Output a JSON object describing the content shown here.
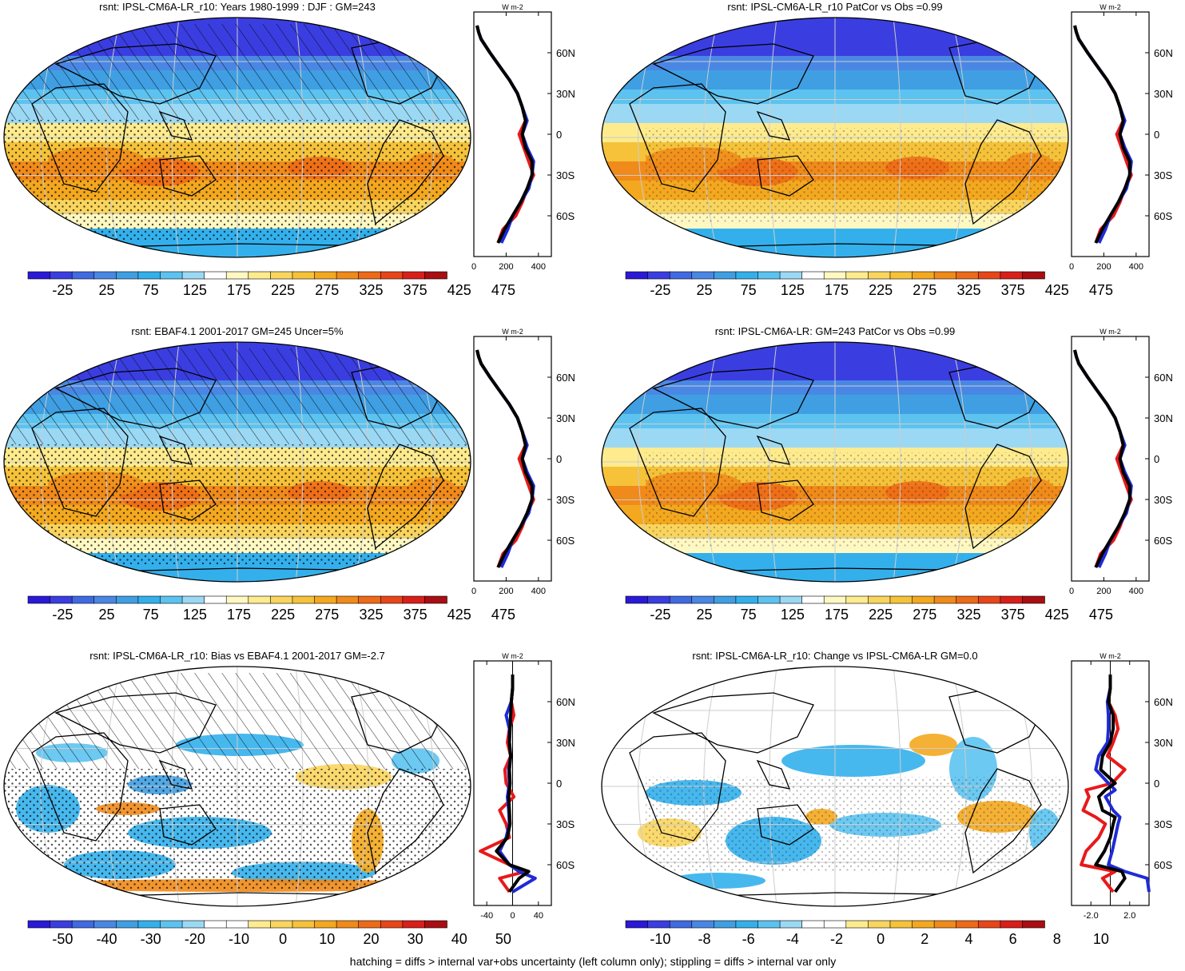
{
  "footnote": "hatching = diffs > internal var+obs uncertainty (left column only); stippling = diffs > internal var only",
  "colors": {
    "abs_scale": [
      "#2a19d6",
      "#3a3ee0",
      "#3f6ae2",
      "#4a87e4",
      "#3f9fe2",
      "#33b0ec",
      "#5cc3f0",
      "#9bd8f4",
      "#ffffff",
      "#fff8c2",
      "#fdeb8e",
      "#f9d55e",
      "#f5c23a",
      "#f3a81f",
      "#f08a1a",
      "#ed6a18",
      "#e8461a",
      "#d81f1a",
      "#a80e12"
    ],
    "diff_scale": [
      "#2a19d6",
      "#3a3ee0",
      "#3f6ae2",
      "#4a87e4",
      "#3f9fe2",
      "#33b0ec",
      "#5cc3f0",
      "#9bd8f4",
      "#ffffff",
      "#ffffff",
      "#fdeb8e",
      "#f9d55e",
      "#f5c23a",
      "#f3a81f",
      "#f08a1a",
      "#ed6a18",
      "#e8461a",
      "#d81f1a",
      "#a80e12"
    ],
    "line_red": "#e8191a",
    "line_blue": "#1f2bd6",
    "line_black": "#000000"
  },
  "chart_data": [
    {
      "type": "heatmap",
      "title": "rsnt: IPSL-CM6A-LR_r10: Years 1980-1999 : DJF : GM=243",
      "colorbar_labels": [
        "-25",
        "25",
        "75",
        "125",
        "175",
        "225",
        "275",
        "325",
        "375",
        "425",
        "475"
      ],
      "levels": [
        -50,
        -25,
        0,
        25,
        50,
        75,
        100,
        125,
        150,
        175,
        200,
        225,
        250,
        275,
        300,
        325,
        350,
        375,
        400,
        425,
        450,
        475,
        500
      ],
      "hatching": true,
      "profile": {
        "ylabels": [
          "60N",
          "30N",
          "0",
          "30S",
          "60S"
        ],
        "xticklabels": [
          "0",
          "200",
          "400"
        ],
        "xlim": [
          0,
          480
        ],
        "unit_label": "W m-2",
        "lat": [
          80,
          75,
          70,
          60,
          50,
          40,
          30,
          20,
          10,
          0,
          -10,
          -20,
          -30,
          -40,
          -50,
          -60,
          -70,
          -80
        ],
        "series": [
          {
            "color": "red",
            "values": [
              20,
              30,
              45,
              100,
              160,
              220,
              270,
              300,
              320,
              280,
              310,
              340,
              370,
              330,
              300,
              260,
              180,
              150
            ]
          },
          {
            "color": "blue",
            "values": [
              20,
              30,
              45,
              100,
              160,
              220,
              270,
              300,
              330,
              300,
              330,
              370,
              360,
              340,
              290,
              240,
              210,
              170
            ]
          },
          {
            "color": "black",
            "values": [
              20,
              30,
              45,
              100,
              160,
              220,
              270,
              300,
              320,
              300,
              320,
              360,
              360,
              330,
              290,
              240,
              190,
              150
            ]
          }
        ]
      }
    },
    {
      "type": "heatmap",
      "title": "rsnt: IPSL-CM6A-LR_r10 PatCor vs Obs =0.99",
      "colorbar_labels": [
        "-25",
        "25",
        "75",
        "125",
        "175",
        "225",
        "275",
        "325",
        "375",
        "425",
        "475"
      ],
      "levels": [
        -50,
        -25,
        0,
        25,
        50,
        75,
        100,
        125,
        150,
        175,
        200,
        225,
        250,
        275,
        300,
        325,
        350,
        375,
        400,
        425,
        450,
        475,
        500
      ],
      "hatching": false,
      "profile": {
        "ylabels": [
          "60N",
          "30N",
          "0",
          "30S",
          "60S"
        ],
        "xticklabels": [
          "0",
          "200",
          "400"
        ],
        "xlim": [
          0,
          480
        ],
        "unit_label": "W m-2",
        "lat": [
          80,
          75,
          70,
          60,
          50,
          40,
          30,
          20,
          10,
          0,
          -10,
          -20,
          -30,
          -40,
          -50,
          -60,
          -70,
          -80
        ],
        "series": [
          {
            "color": "red",
            "values": [
              20,
              30,
              45,
              100,
              160,
              220,
              270,
              300,
              320,
              280,
              310,
              340,
              370,
              330,
              300,
              260,
              180,
              150
            ]
          },
          {
            "color": "blue",
            "values": [
              20,
              30,
              45,
              100,
              160,
              220,
              270,
              300,
              330,
              300,
              330,
              370,
              360,
              340,
              290,
              240,
              210,
              170
            ]
          },
          {
            "color": "black",
            "values": [
              20,
              30,
              45,
              100,
              160,
              220,
              270,
              300,
              320,
              300,
              320,
              360,
              360,
              330,
              290,
              240,
              190,
              150
            ]
          }
        ]
      }
    },
    {
      "type": "heatmap",
      "title": "rsnt: EBAF4.1 2001-2017 GM=245 Uncer=5%",
      "colorbar_labels": [
        "-25",
        "25",
        "75",
        "125",
        "175",
        "225",
        "275",
        "325",
        "375",
        "425",
        "475"
      ],
      "levels": [
        -50,
        -25,
        0,
        25,
        50,
        75,
        100,
        125,
        150,
        175,
        200,
        225,
        250,
        275,
        300,
        325,
        350,
        375,
        400,
        425,
        450,
        475,
        500
      ],
      "hatching": true,
      "profile": {
        "ylabels": [
          "60N",
          "30N",
          "0",
          "30S",
          "60S"
        ],
        "xticklabels": [
          "0",
          "200",
          "400"
        ],
        "xlim": [
          0,
          480
        ],
        "unit_label": "W m-2",
        "lat": [
          80,
          75,
          70,
          60,
          50,
          40,
          30,
          20,
          10,
          0,
          -10,
          -20,
          -30,
          -40,
          -50,
          -60,
          -70,
          -80
        ],
        "series": [
          {
            "color": "red",
            "values": [
              20,
              30,
              45,
              100,
              160,
              220,
              270,
              300,
              320,
              280,
              310,
              340,
              370,
              330,
              300,
              260,
              180,
              150
            ]
          },
          {
            "color": "blue",
            "values": [
              20,
              30,
              45,
              100,
              160,
              220,
              270,
              300,
              330,
              300,
              330,
              370,
              360,
              340,
              290,
              240,
              210,
              170
            ]
          },
          {
            "color": "black",
            "values": [
              20,
              30,
              45,
              100,
              160,
              220,
              270,
              300,
              320,
              300,
              320,
              360,
              360,
              330,
              290,
              240,
              190,
              150
            ]
          }
        ]
      }
    },
    {
      "type": "heatmap",
      "title": "rsnt: IPSL-CM6A-LR: GM=243 PatCor vs Obs =0.99",
      "colorbar_labels": [
        "-25",
        "25",
        "75",
        "125",
        "175",
        "225",
        "275",
        "325",
        "375",
        "425",
        "475"
      ],
      "levels": [
        -50,
        -25,
        0,
        25,
        50,
        75,
        100,
        125,
        150,
        175,
        200,
        225,
        250,
        275,
        300,
        325,
        350,
        375,
        400,
        425,
        450,
        475,
        500
      ],
      "hatching": false,
      "profile": {
        "ylabels": [
          "60N",
          "30N",
          "0",
          "30S",
          "60S"
        ],
        "xticklabels": [
          "0",
          "200",
          "400"
        ],
        "xlim": [
          0,
          480
        ],
        "unit_label": "W m-2",
        "lat": [
          80,
          75,
          70,
          60,
          50,
          40,
          30,
          20,
          10,
          0,
          -10,
          -20,
          -30,
          -40,
          -50,
          -60,
          -70,
          -80
        ],
        "series": [
          {
            "color": "red",
            "values": [
              20,
              30,
              45,
              100,
              160,
              220,
              270,
              300,
              320,
              280,
              310,
              340,
              370,
              330,
              300,
              260,
              180,
              150
            ]
          },
          {
            "color": "blue",
            "values": [
              20,
              30,
              45,
              100,
              160,
              220,
              270,
              300,
              330,
              300,
              330,
              370,
              360,
              340,
              290,
              240,
              210,
              170
            ]
          },
          {
            "color": "black",
            "values": [
              20,
              30,
              45,
              100,
              160,
              220,
              270,
              300,
              320,
              300,
              320,
              360,
              360,
              330,
              290,
              240,
              190,
              150
            ]
          }
        ]
      }
    },
    {
      "type": "heatmap",
      "title": "rsnt: IPSL-CM6A-LR_r10: Bias vs EBAF4.1 2001-2017 GM=-2.7",
      "colorbar_labels": [
        "-50",
        "-40",
        "-30",
        "-20",
        "-10",
        "0",
        "10",
        "20",
        "30",
        "40",
        "50"
      ],
      "levels": [
        -55,
        -50,
        -45,
        -40,
        -35,
        -30,
        -25,
        -20,
        -15,
        -10,
        -5,
        0,
        5,
        10,
        15,
        20,
        25,
        30,
        35,
        40,
        45,
        50,
        55
      ],
      "hatching": true,
      "profile": {
        "ylabels": [
          "60N",
          "30N",
          "0",
          "30S",
          "60S"
        ],
        "xticklabels": [
          "-40",
          "0",
          "40"
        ],
        "xlim": [
          -60,
          60
        ],
        "unit_label": "W m-2",
        "lat": [
          80,
          70,
          60,
          50,
          40,
          30,
          20,
          10,
          0,
          -10,
          -20,
          -30,
          -40,
          -50,
          -60,
          -65,
          -70,
          -80
        ],
        "series": [
          {
            "color": "red",
            "values": [
              0,
              0,
              -2,
              2,
              -5,
              -8,
              -3,
              -12,
              -10,
              2,
              -20,
              -10,
              -5,
              -50,
              -5,
              20,
              -20,
              -5
            ]
          },
          {
            "color": "blue",
            "values": [
              0,
              0,
              -2,
              -10,
              -5,
              -5,
              -3,
              -6,
              -5,
              -8,
              -6,
              -5,
              -10,
              -20,
              -5,
              10,
              35,
              0
            ]
          },
          {
            "color": "black",
            "values": [
              0,
              0,
              -2,
              -3,
              -4,
              -5,
              -3,
              -5,
              -4,
              -6,
              -5,
              -4,
              -8,
              -25,
              -5,
              25,
              10,
              -5
            ]
          }
        ]
      }
    },
    {
      "type": "heatmap",
      "title": "rsnt: IPSL-CM6A-LR_r10: Change vs IPSL-CM6A-LR GM=0.0",
      "colorbar_labels": [
        "-10",
        "-8",
        "-6",
        "-4",
        "-2",
        "0",
        "2",
        "4",
        "6",
        "8",
        "10"
      ],
      "levels": [
        -11,
        -10,
        -9,
        -8,
        -7,
        -6,
        -5,
        -4,
        -3,
        -2,
        -1,
        0,
        1,
        2,
        3,
        4,
        5,
        6,
        7,
        8,
        9,
        10,
        11
      ],
      "hatching": false,
      "profile": {
        "ylabels": [
          "60N",
          "30N",
          "0",
          "30S",
          "60S"
        ],
        "xticklabels": [
          "-2.0",
          "2.0"
        ],
        "xlim": [
          -4,
          4
        ],
        "unit_label": "W m-2",
        "lat": [
          80,
          70,
          60,
          50,
          40,
          30,
          20,
          10,
          0,
          -5,
          -10,
          -20,
          -25,
          -30,
          -40,
          -50,
          -60,
          -65,
          -70,
          -80
        ],
        "series": [
          {
            "color": "red",
            "values": [
              0,
              0,
              -0.2,
              0.5,
              0.8,
              0.3,
              -0.3,
              1.5,
              0.2,
              -2.5,
              -2.2,
              -2.8,
              -1.5,
              -0.5,
              -1.2,
              -2.5,
              -3,
              0.5,
              -0.8,
              0.3
            ]
          },
          {
            "color": "blue",
            "values": [
              0,
              0,
              -0.3,
              -0.2,
              -0.2,
              -0.3,
              -1.2,
              -1.5,
              -0.2,
              0.5,
              -0.5,
              0.3,
              1.0,
              0.8,
              0.5,
              0.2,
              -0.2,
              1.5,
              3.8,
              4.0
            ]
          },
          {
            "color": "black",
            "values": [
              0,
              0,
              -0.2,
              0.3,
              0.3,
              0,
              -0.8,
              -1.0,
              0.5,
              -0.5,
              -1.2,
              -0.8,
              0.5,
              0.3,
              0,
              -0.6,
              -1.5,
              1.2,
              1.5,
              0.5
            ]
          }
        ]
      }
    }
  ]
}
